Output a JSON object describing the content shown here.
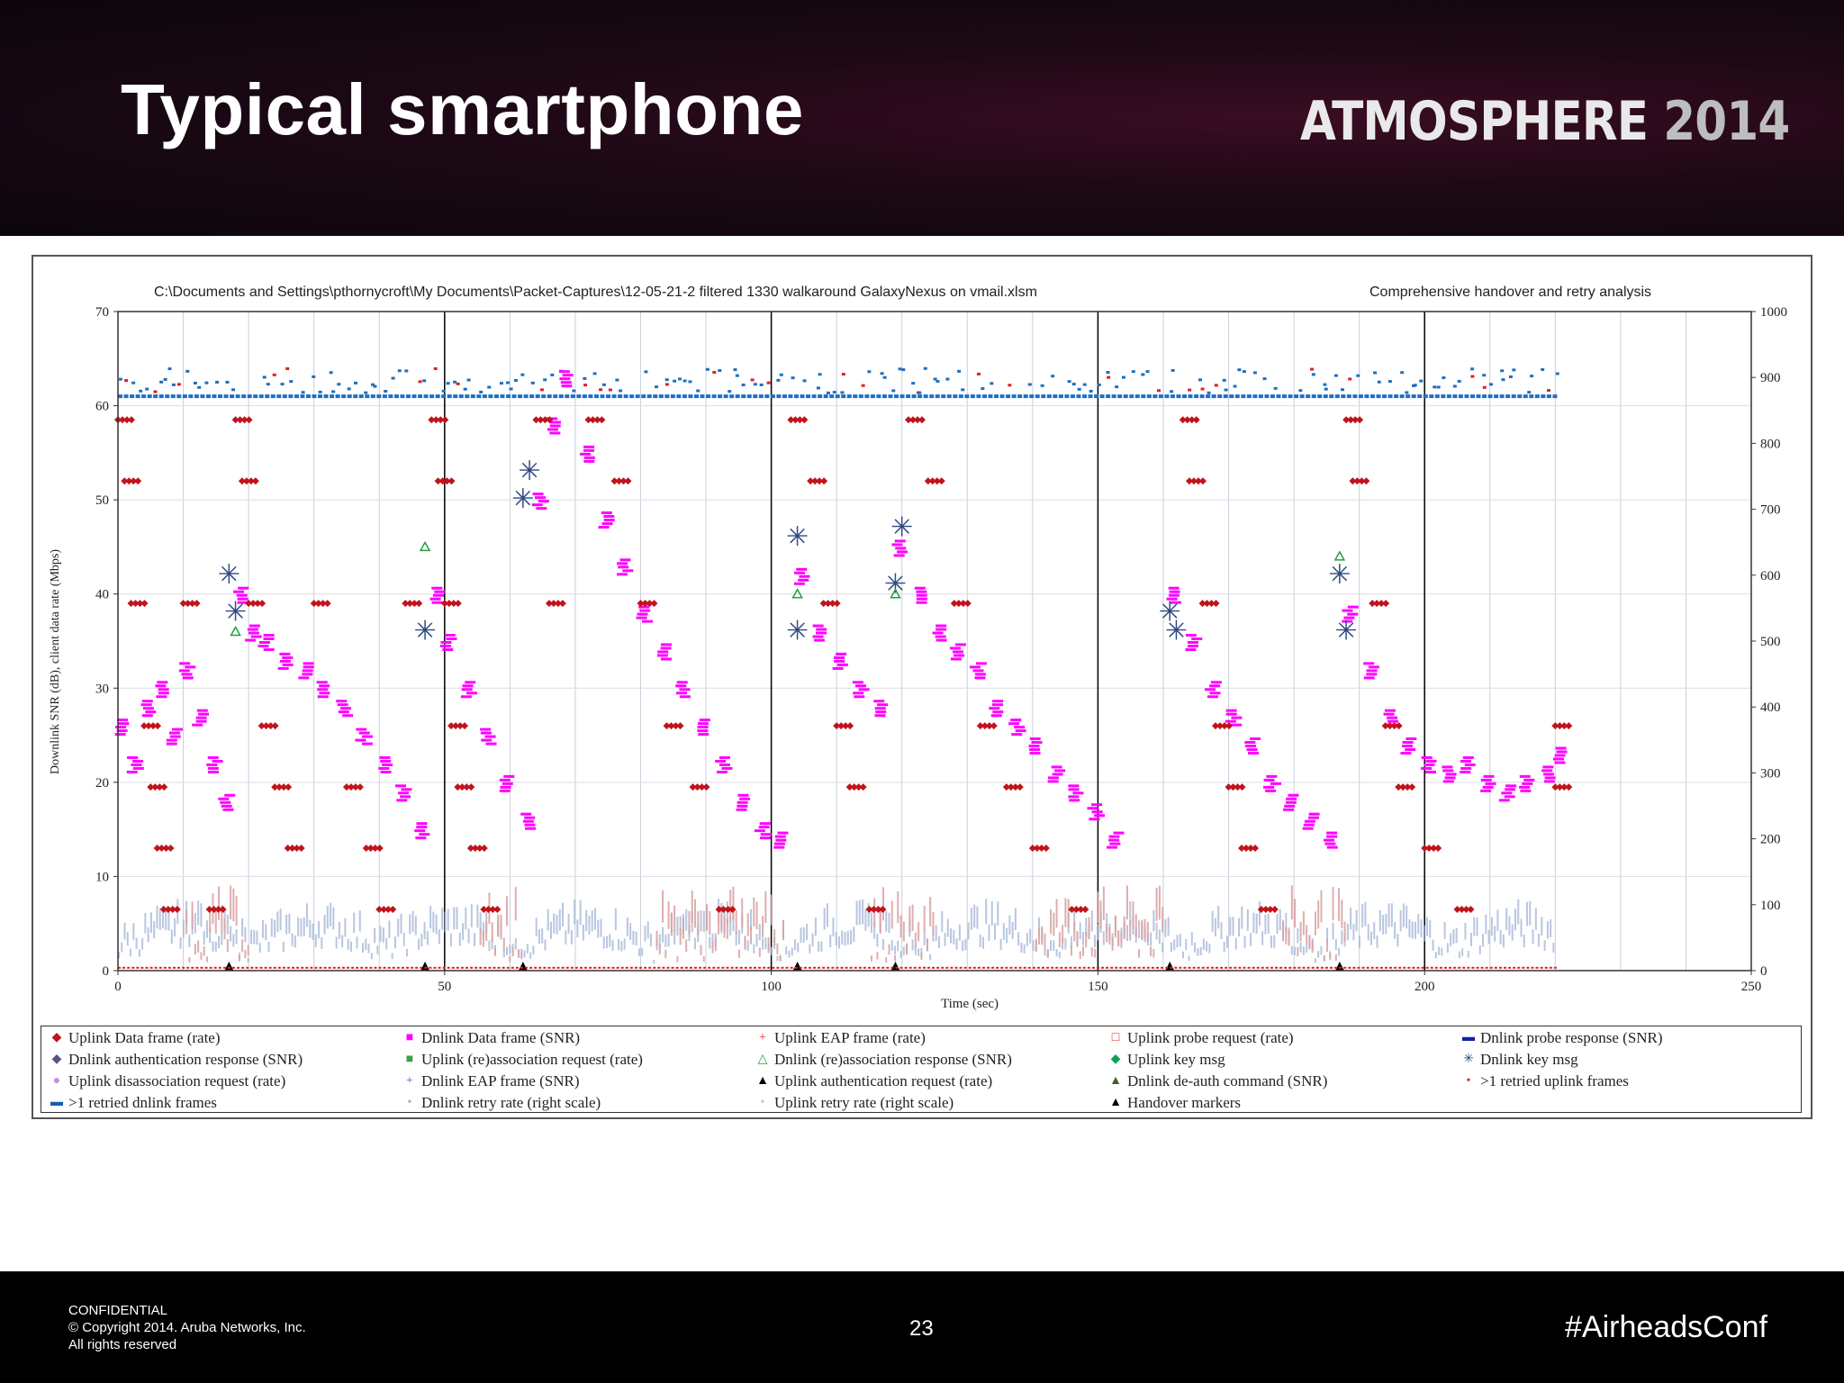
{
  "slide": {
    "title": "Typical smartphone",
    "brand_name": "ATMOSPHERE",
    "brand_year": "2014"
  },
  "footer": {
    "confidential": "CONFIDENTIAL",
    "copyright": "© Copyright 2014. Aruba Networks, Inc.",
    "rights": "All rights reserved",
    "page_number": "23",
    "hashtag": "#AirheadsConf"
  },
  "chart_data": {
    "type": "scatter",
    "title": "C:\\Documents and Settings\\pthornycroft\\My Documents\\Packet-Captures\\12-05-21-2 filtered 1330 walkaround GalaxyNexus on vmail.xlsm",
    "subtitle": "Comprehensive handover and retry analysis",
    "xlabel": "Time (sec)",
    "ylabel": "Downlink SNR (dB), client data rate (Mbps)",
    "xlim": [
      0,
      250
    ],
    "ylim": [
      0,
      70
    ],
    "y2lim": [
      0,
      1000
    ],
    "x_ticks": [
      "0",
      "50",
      "100",
      "150",
      "200",
      "250"
    ],
    "y_ticks": [
      "0",
      "10",
      "20",
      "30",
      "40",
      "50",
      "60",
      "70"
    ],
    "y2_ticks": [
      "0",
      "100",
      "200",
      "300",
      "400",
      "500",
      "600",
      "700",
      "800",
      "900",
      "1000"
    ],
    "grid": true,
    "handover_markers_x": [
      17,
      47,
      62,
      104,
      119,
      161,
      187
    ],
    "legend_position": "bottom",
    "legend": [
      {
        "label": "Uplink Data frame (rate)",
        "symbol": "diamond",
        "color": "#c0141c"
      },
      {
        "label": "Dnlink Data frame (SNR)",
        "symbol": "square",
        "color": "#ff00ff"
      },
      {
        "label": "Uplink EAP frame (rate)",
        "symbol": "plus",
        "color": "#e02020"
      },
      {
        "label": "Uplink probe request (rate)",
        "symbol": "open-square",
        "color": "#e02020"
      },
      {
        "label": "Dnlink probe response (SNR)",
        "symbol": "dash",
        "color": "#1020b0"
      },
      {
        "label": "Dnlink authentication response (SNR)",
        "symbol": "diamond",
        "color": "#605080"
      },
      {
        "label": "Uplink (re)association request (rate)",
        "symbol": "square",
        "color": "#40a040"
      },
      {
        "label": "Dnlink (re)association response (SNR)",
        "symbol": "open-triangle",
        "color": "#20a040"
      },
      {
        "label": "Uplink key msg",
        "symbol": "diamond",
        "color": "#10a060"
      },
      {
        "label": "Dnlink key msg",
        "symbol": "asterisk",
        "color": "#304a80"
      },
      {
        "label": "Uplink disassociation request (rate)",
        "symbol": "circle",
        "color": "#c090e0"
      },
      {
        "label": "Dnlink EAP frame (SNR)",
        "symbol": "plus",
        "color": "#2060c0"
      },
      {
        "label": "Uplink authentication request (rate)",
        "symbol": "triangle",
        "color": "#000000"
      },
      {
        "label": "Dnlink de-auth command (SNR)",
        "symbol": "triangle",
        "color": "#406020"
      },
      {
        "label": ">1 retried uplink frames",
        "symbol": "dot",
        "color": "#e02020"
      },
      {
        "label": ">1 retried dnlink frames",
        "symbol": "dash",
        "color": "#1060b0"
      },
      {
        "label": "Dnlink retry rate (right scale)",
        "symbol": "dot",
        "color": "#a0b0d0"
      },
      {
        "label": "Uplink retry rate (right scale)",
        "symbol": "dot",
        "color": "#d0c0c0"
      },
      {
        "label": "Handover markers",
        "symbol": "triangle",
        "color": "#000000"
      }
    ],
    "series": [
      {
        "name": "Dnlink Data frame (SNR)",
        "color": "#ff00ff",
        "points": [
          [
            0,
            26
          ],
          [
            2,
            22
          ],
          [
            4,
            28
          ],
          [
            6,
            30
          ],
          [
            8,
            25
          ],
          [
            10,
            32
          ],
          [
            12,
            27
          ],
          [
            14,
            22
          ],
          [
            16,
            18
          ],
          [
            18,
            40
          ],
          [
            20,
            36
          ],
          [
            22,
            35
          ],
          [
            25,
            33
          ],
          [
            28,
            32
          ],
          [
            31,
            30
          ],
          [
            34,
            28
          ],
          [
            37,
            25
          ],
          [
            40,
            22
          ],
          [
            43,
            19
          ],
          [
            46,
            15
          ],
          [
            48,
            40
          ],
          [
            50,
            35
          ],
          [
            53,
            30
          ],
          [
            56,
            25
          ],
          [
            59,
            20
          ],
          [
            62,
            16
          ],
          [
            64,
            50
          ],
          [
            66,
            58
          ],
          [
            68,
            63
          ],
          [
            71,
            55
          ],
          [
            74,
            48
          ],
          [
            77,
            43
          ],
          [
            80,
            38
          ],
          [
            83,
            34
          ],
          [
            86,
            30
          ],
          [
            89,
            26
          ],
          [
            92,
            22
          ],
          [
            95,
            18
          ],
          [
            98,
            15
          ],
          [
            101,
            14
          ],
          [
            104,
            42
          ],
          [
            107,
            36
          ],
          [
            110,
            33
          ],
          [
            113,
            30
          ],
          [
            116,
            28
          ],
          [
            119,
            45
          ],
          [
            122,
            40
          ],
          [
            125,
            36
          ],
          [
            128,
            34
          ],
          [
            131,
            32
          ],
          [
            134,
            28
          ],
          [
            137,
            26
          ],
          [
            140,
            24
          ],
          [
            143,
            21
          ],
          [
            146,
            19
          ],
          [
            149,
            17
          ],
          [
            152,
            14
          ],
          [
            161,
            40
          ],
          [
            164,
            35
          ],
          [
            167,
            30
          ],
          [
            170,
            27
          ],
          [
            173,
            24
          ],
          [
            176,
            20
          ],
          [
            179,
            18
          ],
          [
            182,
            16
          ],
          [
            185,
            14
          ],
          [
            188,
            38
          ],
          [
            191,
            32
          ],
          [
            194,
            27
          ],
          [
            197,
            24
          ],
          [
            200,
            22
          ],
          [
            203,
            21
          ],
          [
            206,
            22
          ],
          [
            209,
            20
          ],
          [
            212,
            19
          ],
          [
            215,
            20
          ],
          [
            218,
            21
          ],
          [
            220,
            23
          ]
        ]
      },
      {
        "name": "Uplink Data frame (rate)",
        "color": "#c0141c",
        "points": [
          [
            0,
            58.5
          ],
          [
            1,
            52
          ],
          [
            2,
            39
          ],
          [
            4,
            26
          ],
          [
            5,
            19.5
          ],
          [
            6,
            13
          ],
          [
            7,
            6.5
          ],
          [
            10,
            39
          ],
          [
            14,
            6.5
          ],
          [
            18,
            58.5
          ],
          [
            19,
            52
          ],
          [
            20,
            39
          ],
          [
            22,
            26
          ],
          [
            24,
            19.5
          ],
          [
            26,
            13
          ],
          [
            30,
            39
          ],
          [
            35,
            19.5
          ],
          [
            38,
            13
          ],
          [
            40,
            6.5
          ],
          [
            44,
            39
          ],
          [
            48,
            58.5
          ],
          [
            49,
            52
          ],
          [
            50,
            39
          ],
          [
            51,
            26
          ],
          [
            52,
            19.5
          ],
          [
            54,
            13
          ],
          [
            56,
            6.5
          ],
          [
            64,
            58.5
          ],
          [
            66,
            39
          ],
          [
            72,
            58.5
          ],
          [
            76,
            52
          ],
          [
            80,
            39
          ],
          [
            84,
            26
          ],
          [
            88,
            19.5
          ],
          [
            92,
            6.5
          ],
          [
            103,
            58.5
          ],
          [
            106,
            52
          ],
          [
            108,
            39
          ],
          [
            110,
            26
          ],
          [
            112,
            19.5
          ],
          [
            115,
            6.5
          ],
          [
            121,
            58.5
          ],
          [
            124,
            52
          ],
          [
            128,
            39
          ],
          [
            132,
            26
          ],
          [
            136,
            19.5
          ],
          [
            140,
            13
          ],
          [
            146,
            6.5
          ],
          [
            163,
            58.5
          ],
          [
            164,
            52
          ],
          [
            166,
            39
          ],
          [
            168,
            26
          ],
          [
            170,
            19.5
          ],
          [
            172,
            13
          ],
          [
            175,
            6.5
          ],
          [
            188,
            58.5
          ],
          [
            189,
            52
          ],
          [
            192,
            39
          ],
          [
            194,
            26
          ],
          [
            196,
            19.5
          ],
          [
            200,
            13
          ],
          [
            205,
            6.5
          ],
          [
            220,
            26
          ],
          [
            220,
            19.5
          ]
        ]
      },
      {
        "name": "Dnlink key msg",
        "color": "#304a80",
        "points": [
          [
            17,
            42
          ],
          [
            18,
            38
          ],
          [
            47,
            36
          ],
          [
            62,
            50
          ],
          [
            63,
            53
          ],
          [
            104,
            46
          ],
          [
            104,
            36
          ],
          [
            119,
            41
          ],
          [
            120,
            47
          ],
          [
            161,
            38
          ],
          [
            162,
            36
          ],
          [
            187,
            42
          ],
          [
            188,
            36
          ]
        ]
      },
      {
        "name": "Dnlink (re)association response (SNR)",
        "color": "#20a040",
        "points": [
          [
            47,
            45
          ],
          [
            104,
            40
          ],
          [
            119,
            40
          ],
          [
            187,
            44
          ],
          [
            18,
            36
          ]
        ]
      }
    ]
  }
}
